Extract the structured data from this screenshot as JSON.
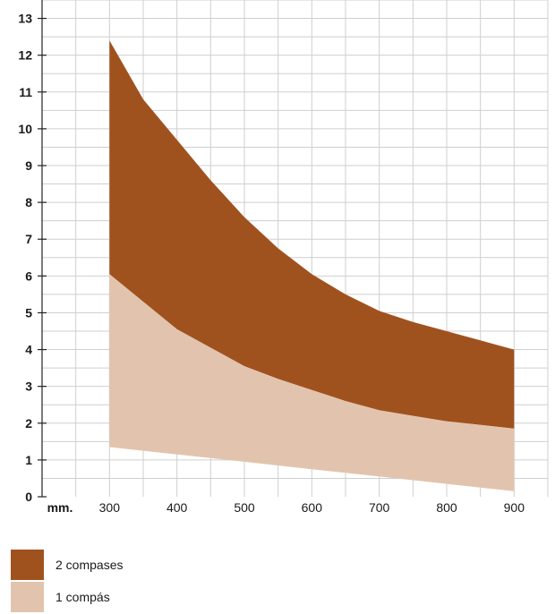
{
  "chart_data": {
    "type": "area",
    "x": [
      300,
      350,
      400,
      450,
      500,
      550,
      600,
      650,
      700,
      750,
      800,
      850,
      900
    ],
    "xlabel": "mm.",
    "x_ticks": [
      300,
      400,
      500,
      600,
      700,
      800,
      900
    ],
    "xlim": [
      200,
      950
    ],
    "y_ticks": [
      0,
      1,
      2,
      3,
      4,
      5,
      6,
      7,
      8,
      9,
      10,
      11,
      12,
      13
    ],
    "ylim": [
      0,
      13.5
    ],
    "grid": true,
    "legend_position": "bottom-left",
    "series": [
      {
        "name": "2 compases",
        "color": "#a0521e",
        "lower": [
          6.05,
          5.3,
          4.55,
          4.05,
          3.55,
          3.2,
          2.9,
          2.6,
          2.35,
          2.2,
          2.05,
          1.95,
          1.85
        ],
        "upper": [
          12.4,
          10.8,
          9.7,
          8.6,
          7.6,
          6.75,
          6.05,
          5.5,
          5.05,
          4.75,
          4.5,
          4.25,
          4.0
        ]
      },
      {
        "name": "1 compás",
        "color": "#e2c4ae",
        "lower": [
          1.35,
          1.25,
          1.15,
          1.05,
          0.95,
          0.85,
          0.75,
          0.65,
          0.55,
          0.45,
          0.35,
          0.25,
          0.15
        ],
        "upper": [
          6.05,
          5.3,
          4.55,
          4.05,
          3.55,
          3.2,
          2.9,
          2.6,
          2.35,
          2.2,
          2.05,
          1.95,
          1.85
        ]
      }
    ]
  }
}
